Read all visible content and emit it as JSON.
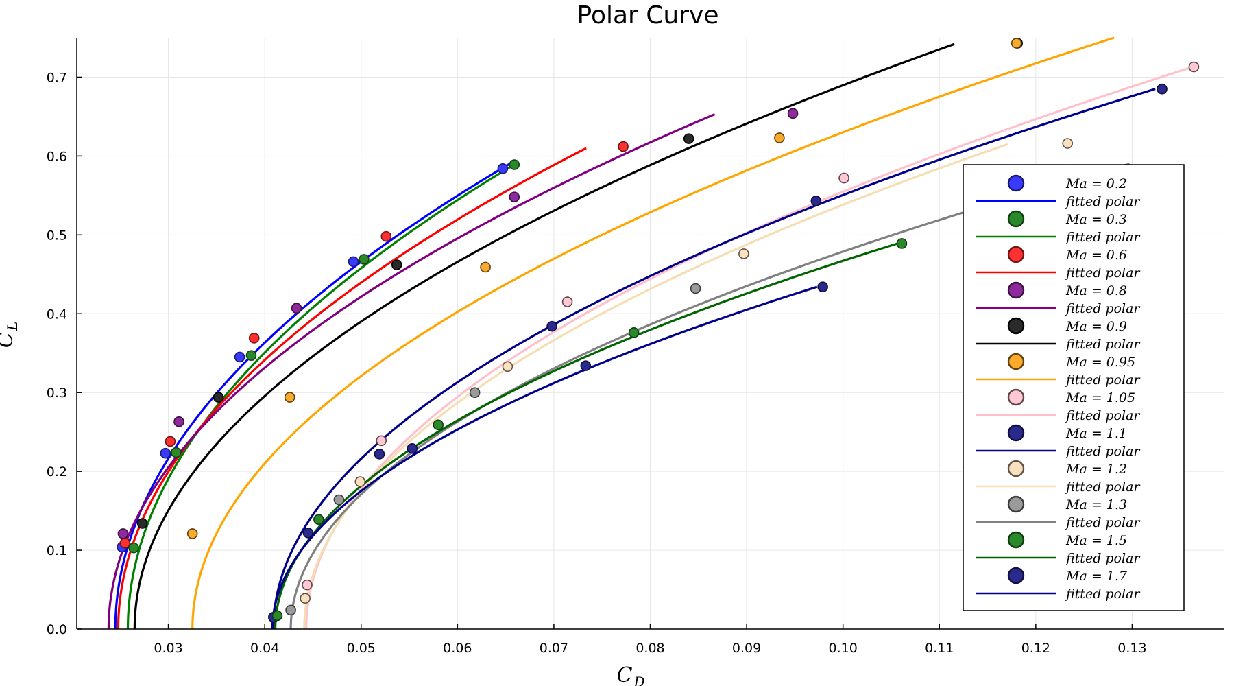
{
  "chart_data": {
    "type": "scatter",
    "title": "Polar Curve",
    "xlabel": "C",
    "xlabel_sub": "D",
    "ylabel": "C",
    "ylabel_sub": "L",
    "xlim": [
      0.0205,
      0.1395
    ],
    "ylim": [
      0.0,
      0.75
    ],
    "x_ticks": [
      0.03,
      0.04,
      0.05,
      0.06,
      0.07,
      0.08,
      0.09,
      0.1,
      0.11,
      0.12,
      0.13
    ],
    "x_tick_labels": [
      "0.03",
      "0.04",
      "0.05",
      "0.06",
      "0.07",
      "0.08",
      "0.09",
      "0.10",
      "0.11",
      "0.12",
      "0.13"
    ],
    "y_ticks": [
      0.0,
      0.1,
      0.2,
      0.3,
      0.4,
      0.5,
      0.6,
      0.7
    ],
    "y_tick_labels": [
      "0.0",
      "0.1",
      "0.2",
      "0.3",
      "0.4",
      "0.5",
      "0.6",
      "0.7"
    ],
    "grid": true,
    "legend_position": "right",
    "fit_label": "fitted  polar",
    "series": [
      {
        "name": "Ma = 0.2",
        "mach": "0.2",
        "point_color": "#3a3aff",
        "line_color": "#0000ff",
        "point_edge": "#1a1a6e",
        "cd0": 0.0245,
        "k": 0.1175,
        "cl_max": 0.59,
        "points": [
          [
            0.0252,
            0.104
          ],
          [
            0.0297,
            0.223
          ],
          [
            0.0374,
            0.345
          ],
          [
            0.0492,
            0.466
          ],
          [
            0.0647,
            0.584
          ]
        ]
      },
      {
        "name": "Ma = 0.3",
        "mach": "0.3",
        "point_color": "#2a8a2a",
        "line_color": "#008000",
        "point_edge": "#134013",
        "cd0": 0.0258,
        "k": 0.1155,
        "cl_max": 0.59,
        "points": [
          [
            0.0264,
            0.103
          ],
          [
            0.0308,
            0.224
          ],
          [
            0.0386,
            0.347
          ],
          [
            0.0503,
            0.469
          ],
          [
            0.0659,
            0.589
          ]
        ]
      },
      {
        "name": "Ma = 0.6",
        "mach": "0.6",
        "point_color": "#ff3030",
        "line_color": "#ff0000",
        "point_edge": "#6e1414",
        "cd0": 0.0248,
        "k": 0.1305,
        "cl_max": 0.61,
        "points": [
          [
            0.0255,
            0.109
          ],
          [
            0.0302,
            0.238
          ],
          [
            0.0389,
            0.369
          ],
          [
            0.0526,
            0.498
          ],
          [
            0.0772,
            0.612
          ]
        ]
      },
      {
        "name": "Ma = 0.8",
        "mach": "0.8",
        "point_color": "#8e2a9e",
        "line_color": "#800080",
        "point_edge": "#3c103f",
        "cd0": 0.0238,
        "k": 0.1475,
        "cl_max": 0.653,
        "points": [
          [
            0.0253,
            0.121
          ],
          [
            0.0311,
            0.263
          ],
          [
            0.0433,
            0.407
          ],
          [
            0.0659,
            0.548
          ],
          [
            0.0948,
            0.654
          ]
        ]
      },
      {
        "name": "Ma = 0.9",
        "mach": "0.9",
        "point_color": "#2a2a2a",
        "line_color": "#000000",
        "point_edge": "#000000",
        "cd0": 0.0265,
        "k": 0.1545,
        "cl_max": 0.742,
        "points": [
          [
            0.0273,
            0.134
          ],
          [
            0.0352,
            0.294
          ],
          [
            0.0537,
            0.462
          ],
          [
            0.084,
            0.622
          ],
          [
            0.1181,
            0.743
          ]
        ]
      },
      {
        "name": "Ma = 0.95",
        "mach": "0.95",
        "point_color": "#fbab2c",
        "line_color": "#ffa500",
        "point_edge": "#5e3f10",
        "cd0": 0.0325,
        "k": 0.17,
        "cl_max": 0.75,
        "points": [
          [
            0.0325,
            0.121
          ],
          [
            0.0426,
            0.294
          ],
          [
            0.0629,
            0.459
          ],
          [
            0.0934,
            0.623
          ],
          [
            0.118,
            0.743
          ]
        ]
      },
      {
        "name": "Ma = 1.05",
        "mach": "1.05",
        "point_color": "#ffc8d2",
        "line_color": "#ffc0cb",
        "point_edge": "#5e474b",
        "cd0": 0.0443,
        "k": 0.181,
        "cl_max": 0.713,
        "points": [
          [
            0.0444,
            0.056
          ],
          [
            0.0521,
            0.239
          ],
          [
            0.0714,
            0.415
          ],
          [
            0.1001,
            0.572
          ],
          [
            0.1364,
            0.713
          ]
        ]
      },
      {
        "name": "Ma = 1.1",
        "mach": "1.1",
        "point_color": "#2a2a8e",
        "line_color": "#00008b",
        "point_edge": "#0f0f3a",
        "cd0": 0.0409,
        "k": 0.195,
        "cl_max": 0.685,
        "points": [
          [
            0.0409,
            0.015
          ],
          [
            0.0445,
            0.122
          ],
          [
            0.0519,
            0.222
          ],
          [
            0.0698,
            0.384
          ],
          [
            0.0972,
            0.543
          ],
          [
            0.1331,
            0.685
          ]
        ]
      },
      {
        "name": "Ma = 1.2",
        "mach": "1.2",
        "point_color": "#fbe0c0",
        "line_color": "#f5deb3",
        "point_edge": "#5e5345",
        "cd0": 0.0441,
        "k": 0.193,
        "cl_max": 0.615,
        "points": [
          [
            0.0442,
            0.039
          ],
          [
            0.0499,
            0.187
          ],
          [
            0.0652,
            0.333
          ],
          [
            0.0897,
            0.476
          ],
          [
            0.1233,
            0.616
          ]
        ]
      },
      {
        "name": "Ma = 1.3",
        "mach": "1.3",
        "point_color": "#9a9a9a",
        "line_color": "#808080",
        "point_edge": "#3a3a3a",
        "cd0": 0.0427,
        "k": 0.25,
        "cl_max": 0.59,
        "points": [
          [
            0.0427,
            0.024
          ],
          [
            0.0477,
            0.164
          ],
          [
            0.0618,
            0.3
          ],
          [
            0.0847,
            0.432
          ],
          [
            0.1167,
            0.562
          ]
        ]
      },
      {
        "name": "Ma = 1.5",
        "mach": "1.5",
        "point_color": "#2a8a2a",
        "line_color": "#006400",
        "point_edge": "#113a11",
        "cd0": 0.0411,
        "k": 0.27,
        "cl_max": 0.489,
        "points": [
          [
            0.0413,
            0.017
          ],
          [
            0.0456,
            0.139
          ],
          [
            0.058,
            0.259
          ],
          [
            0.0783,
            0.376
          ],
          [
            0.1061,
            0.489
          ]
        ]
      },
      {
        "name": "Ma = 1.7",
        "mach": "1.7",
        "point_color": "#2a2a8e",
        "line_color": "#00008b",
        "point_edge": "#0f0f3a",
        "cd0": 0.0408,
        "k": 0.3,
        "cl_max": 0.434,
        "points": [
          [
            0.0553,
            0.229
          ],
          [
            0.0733,
            0.334
          ],
          [
            0.0979,
            0.434
          ]
        ]
      }
    ]
  }
}
